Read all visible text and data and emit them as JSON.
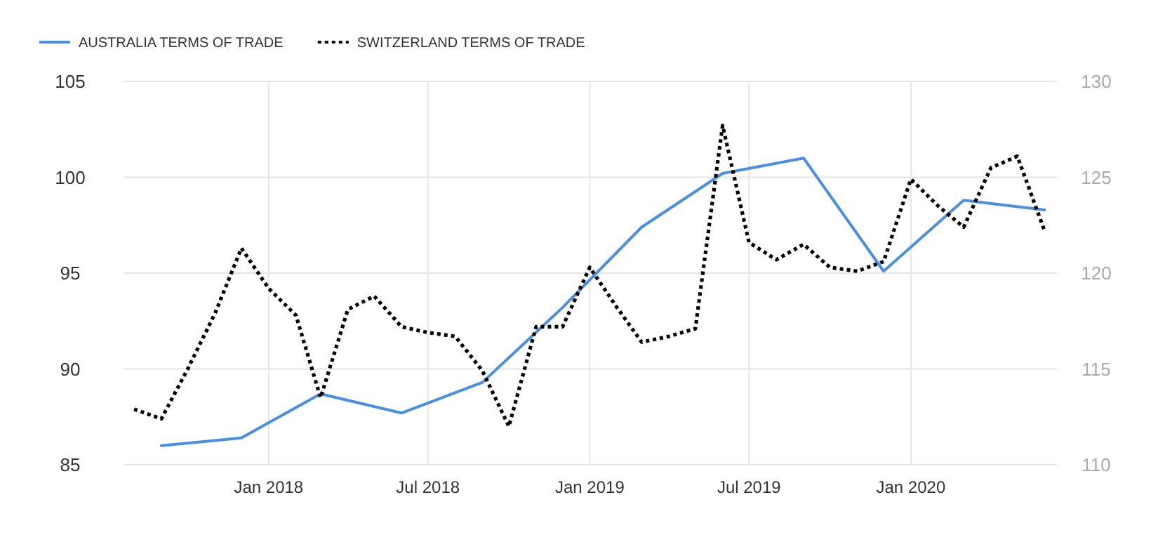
{
  "chart_data": {
    "type": "line",
    "x": [
      "2017-09",
      "2017-12",
      "2018-03",
      "2018-06",
      "2018-09",
      "2018-12",
      "2019-03",
      "2019-06",
      "2019-09",
      "2019-12",
      "2020-03",
      "2020-06"
    ],
    "series": [
      {
        "name": "AUSTRALIA TERMS OF TRADE",
        "color": "#4a90e2",
        "line_style": "solid",
        "values": [
          86.0,
          86.4,
          88.7,
          87.7,
          89.3,
          93.2,
          97.4,
          100.2,
          101.0,
          95.1,
          98.8,
          98.3
        ]
      },
      {
        "name": "SWITZERLAND TERMS OF TRADE",
        "color": "#000000",
        "line_style": "dotted",
        "axis": "y2",
        "x": [
          "2017-08",
          "2017-09",
          "2017-10",
          "2017-11",
          "2017-12",
          "2018-01",
          "2018-02",
          "2018-03",
          "2018-04",
          "2018-05",
          "2018-06",
          "2018-07",
          "2018-08",
          "2018-09",
          "2018-10",
          "2018-11",
          "2018-12",
          "2019-01",
          "2019-02",
          "2019-03",
          "2019-04",
          "2019-05",
          "2019-06",
          "2019-07",
          "2019-08",
          "2019-09",
          "2019-10",
          "2019-11",
          "2019-12",
          "2020-01",
          "2020-02",
          "2020-03",
          "2020-04",
          "2020-05",
          "2020-06"
        ],
        "values": [
          112.9,
          112.4,
          115.0,
          117.9,
          121.3,
          119.2,
          117.8,
          113.5,
          118.1,
          118.8,
          117.2,
          116.9,
          116.7,
          114.9,
          112.0,
          117.2,
          117.2,
          120.3,
          118.2,
          116.4,
          116.7,
          117.1,
          127.7,
          121.6,
          120.7,
          121.5,
          120.3,
          120.1,
          120.6,
          124.9,
          123.5,
          122.4,
          125.5,
          126.1,
          122.2
        ]
      }
    ],
    "xlim": [
      "2017-07-20",
      "2020-06-15"
    ],
    "xticks": [
      {
        "value": "2018-01",
        "label": "Jan 2018"
      },
      {
        "value": "2018-07",
        "label": "Jul 2018"
      },
      {
        "value": "2019-01",
        "label": "Jan 2019"
      },
      {
        "value": "2019-07",
        "label": "Jul 2019"
      },
      {
        "value": "2020-01",
        "label": "Jan 2020"
      }
    ],
    "ylim": [
      85,
      105
    ],
    "yticks": [
      85,
      90,
      95,
      100,
      105
    ],
    "y2lim": [
      110,
      130
    ],
    "y2ticks": [
      110,
      115,
      120,
      125,
      130
    ],
    "grid": true,
    "legend": "top left"
  }
}
